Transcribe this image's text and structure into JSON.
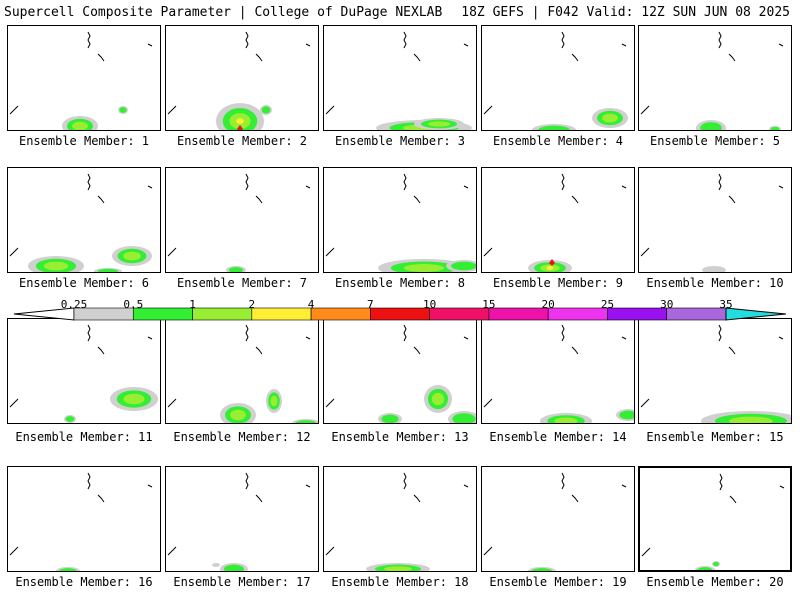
{
  "header": {
    "title_left": "Supercell Composite Parameter | College of DuPage NEXLAB",
    "title_right": "18Z GEFS | F042 Valid: 12Z SUN JUN 08 2025"
  },
  "colorbar": {
    "ticks": [
      "0.25",
      "0.5",
      "1",
      "2",
      "4",
      "7",
      "10",
      "15",
      "20",
      "25",
      "30",
      "35"
    ],
    "colors": [
      "#d0d0d0",
      "#33ee33",
      "#99ee33",
      "#ffee33",
      "#ff8c1a",
      "#ee1111",
      "#ee1166",
      "#ee11aa",
      "#ee33ee",
      "#9911ee",
      "#aa66dd",
      "#22dddd"
    ]
  },
  "members": [
    {
      "label": "Ensemble Member: 1"
    },
    {
      "label": "Ensemble Member: 2"
    },
    {
      "label": "Ensemble Member: 3"
    },
    {
      "label": "Ensemble Member: 4"
    },
    {
      "label": "Ensemble Member: 5"
    },
    {
      "label": "Ensemble Member: 6"
    },
    {
      "label": "Ensemble Member: 7"
    },
    {
      "label": "Ensemble Member: 8"
    },
    {
      "label": "Ensemble Member: 9"
    },
    {
      "label": "Ensemble Member: 10"
    },
    {
      "label": "Ensemble Member: 11"
    },
    {
      "label": "Ensemble Member: 12"
    },
    {
      "label": "Ensemble Member: 13"
    },
    {
      "label": "Ensemble Member: 14"
    },
    {
      "label": "Ensemble Member: 15"
    },
    {
      "label": "Ensemble Member: 16"
    },
    {
      "label": "Ensemble Member: 17"
    },
    {
      "label": "Ensemble Member: 18"
    },
    {
      "label": "Ensemble Member: 19"
    },
    {
      "label": "Ensemble Member: 20",
      "selected": true
    }
  ]
}
